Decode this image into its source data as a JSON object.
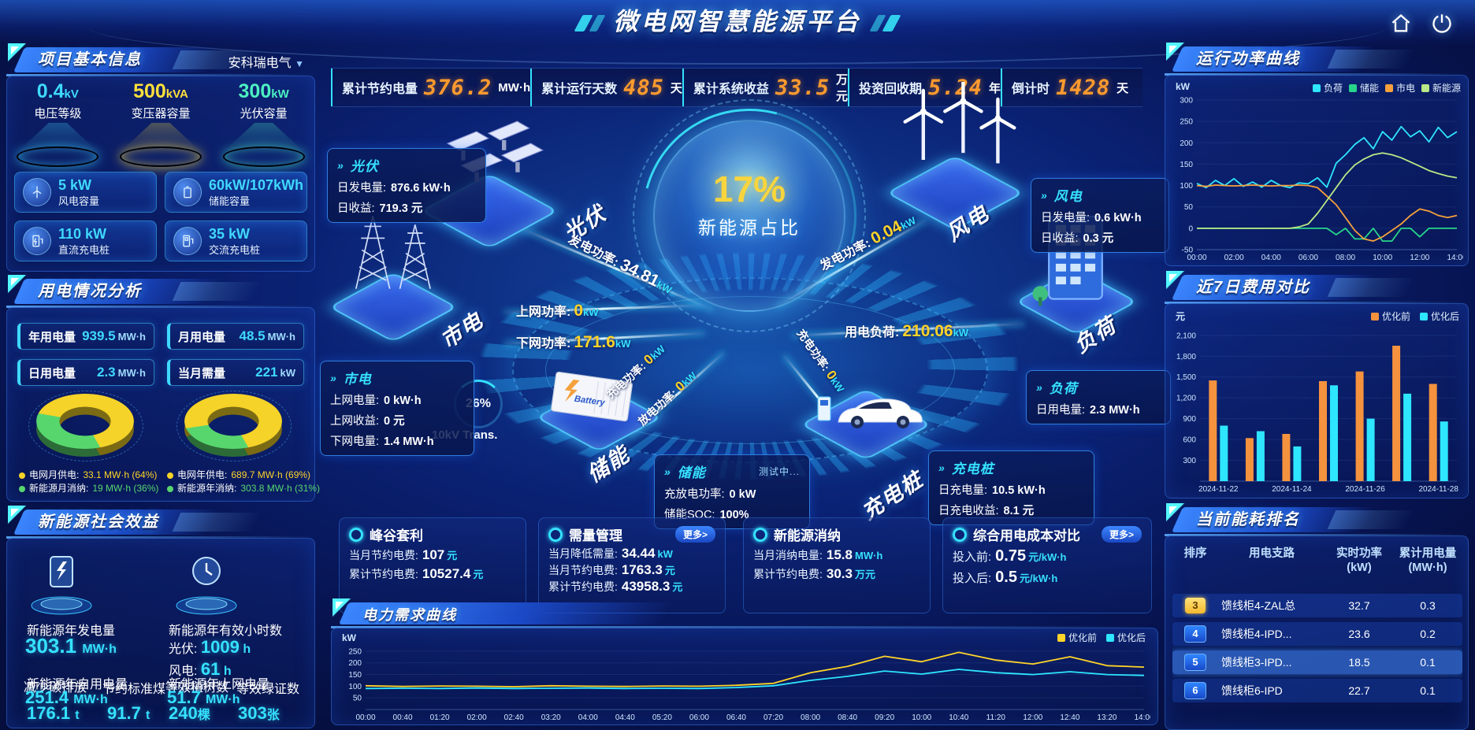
{
  "theme": {
    "accent_cyan": "#35e1ff",
    "accent_yellow": "#ffd428",
    "accent_orange": "#ff9a2e",
    "accent_green": "#57d66e",
    "panel_border": "#4086ff"
  },
  "header": {
    "title": "微电网智慧能源平台"
  },
  "kpis": [
    {
      "label": "累计节约电量",
      "value": "376.2",
      "unit": "MW·h"
    },
    {
      "label": "累计运行天数",
      "value": "485",
      "unit": "天"
    },
    {
      "label": "累计系统收益",
      "value": "33.5",
      "unit": "万元"
    },
    {
      "label": "投资回收期",
      "value": "5.24",
      "unit": "年"
    },
    {
      "label": "倒计时",
      "value": "1428",
      "unit": "天"
    }
  ],
  "project": {
    "title": "项目基本信息",
    "company": "安科瑞电气",
    "spotlights": [
      {
        "value": "0.4",
        "unit": "kV",
        "label": "电压等级",
        "color": "#3fd9ff"
      },
      {
        "value": "500",
        "unit": "kVA",
        "label": "变压器容量",
        "color": "#ffe03a"
      },
      {
        "value": "300",
        "unit": "kW",
        "label": "光伏容量",
        "color": "#4df0c2"
      }
    ],
    "cards": [
      {
        "value": "5 kW",
        "label": "风电容量",
        "icon": "wind-icon"
      },
      {
        "value": "60kW/107kWh",
        "label": "储能容量",
        "icon": "battery-icon"
      },
      {
        "value": "110 kW",
        "label": "直流充电桩",
        "icon": "dc-charger-icon"
      },
      {
        "value": "35 kW",
        "label": "交流充电桩",
        "icon": "ac-charger-icon"
      }
    ]
  },
  "usage": {
    "title": "用电情况分析",
    "chips": [
      {
        "label": "年用电量",
        "value": "939.5",
        "unit": "MW·h"
      },
      {
        "label": "月用电量",
        "value": "48.5",
        "unit": "MW·h"
      },
      {
        "label": "日用电量",
        "value": "2.3",
        "unit": "MW·h"
      },
      {
        "label": "当月需量",
        "value": "221",
        "unit": "kW"
      }
    ],
    "legend_month": [
      {
        "label": "电网月供电:",
        "value": "33.1 MW·h (64%)"
      },
      {
        "label": "新能源月消纳:",
        "value": "19 MW·h (36%)"
      }
    ],
    "legend_year": [
      {
        "label": "电网年供电:",
        "value": "689.7 MW·h (69%)"
      },
      {
        "label": "新能源年消纳:",
        "value": "303.8 MW·h (31%)"
      }
    ]
  },
  "benefit": {
    "title": "新能源社会效益",
    "gen_label": "新能源年发电量",
    "gen_value": "303.1",
    "gen_unit": "MW·h",
    "hours_label": "新能源年有效小时数",
    "pv_label": "光伏:",
    "pv_value": "1009",
    "pv_unit": "h",
    "wind_label": "风电:",
    "wind_value": "61",
    "wind_unit": "h",
    "self_label": "新能源年自用电量",
    "self_value": "251.4",
    "self_unit": "MW·h",
    "feed_label": "新能源年上网电量",
    "feed_value": "51.7",
    "feed_unit": "MW·h",
    "co2_label": "减少碳排放",
    "co2_value": "176.1",
    "co2_unit": "t",
    "coal_label": "节约标准煤",
    "coal_value": "91.7",
    "coal_unit": "t",
    "tree_label": "等效植树数",
    "tree_value": "240",
    "tree_unit": "棵",
    "cert_label": "等效绿证数",
    "cert_value": "303",
    "cert_unit": "张"
  },
  "center": {
    "orb_value": "17%",
    "orb_label": "新能源占比",
    "transformer_value": "26%",
    "transformer_label": "10kV Trans.",
    "battery_text": "Battery",
    "nodes": {
      "solar": "光伏",
      "wind": "风电",
      "grid": "市电",
      "load": "负荷",
      "storage": "储能",
      "charger": "充电桩"
    },
    "boxes": {
      "solar": {
        "title": "光伏",
        "lines": [
          {
            "label": "日发电量:",
            "value": "876.6 kW·h"
          },
          {
            "label": "日收益:",
            "value": "719.3 元"
          }
        ]
      },
      "grid": {
        "title": "市电",
        "lines": [
          {
            "label": "上网电量:",
            "value": "0 kW·h"
          },
          {
            "label": "上网收益:",
            "value": "0 元"
          },
          {
            "label": "下网电量:",
            "value": "1.4 MW·h"
          }
        ]
      },
      "wind": {
        "title": "风电",
        "lines": [
          {
            "label": "日发电量:",
            "value": "0.6 kW·h"
          },
          {
            "label": "日收益:",
            "value": "0.3 元"
          }
        ]
      },
      "load": {
        "title": "负荷",
        "lines": [
          {
            "label": "日用电量:",
            "value": "2.3 MW·h"
          }
        ]
      },
      "storage": {
        "title": "储能",
        "badge": "测试中...",
        "lines": [
          {
            "label": "充放电功率:",
            "value": "0 kW"
          },
          {
            "label": "储能SOC:",
            "value": "100%"
          }
        ]
      },
      "charger": {
        "title": "充电桩",
        "lines": [
          {
            "label": "日充电量:",
            "value": "10.5 kW·h"
          },
          {
            "label": "日充电收益:",
            "value": "8.1 元"
          }
        ]
      }
    },
    "flows": [
      {
        "label": "发电功率:",
        "value": "34.81",
        "unit": "kW"
      },
      {
        "label": "上网功率:",
        "value": "0",
        "unit": "kW"
      },
      {
        "label": "下网功率:",
        "value": "171.6",
        "unit": "kW"
      },
      {
        "label": "发电功率:",
        "value": "0.04",
        "unit": "kW"
      },
      {
        "label": "用电负荷:",
        "value": "210.06",
        "unit": "kW"
      },
      {
        "label": "充电功率:",
        "value": "0",
        "unit": "kW"
      },
      {
        "label": "放电功率:",
        "value": "0",
        "unit": "kW"
      },
      {
        "label": "充电功率:",
        "value": "0",
        "unit": "kW"
      }
    ]
  },
  "bottom_boxes": [
    {
      "title": "峰谷套利",
      "lines": [
        {
          "label": "当月节约电费:",
          "value": "107",
          "unit": "元"
        },
        {
          "label": "累计节约电费:",
          "value": "10527.4",
          "unit": "元"
        }
      ]
    },
    {
      "title": "需量管理",
      "more": "更多>",
      "lines": [
        {
          "label": "当月降低需量:",
          "value": "34.44",
          "unit": "kW"
        },
        {
          "label": "当月节约电费:",
          "value": "1763.3",
          "unit": "元"
        },
        {
          "label": "累计节约电费:",
          "value": "43958.3",
          "unit": "元"
        }
      ]
    },
    {
      "title": "新能源消纳",
      "lines": [
        {
          "label": "当月消纳电量:",
          "value": "15.8",
          "unit": "MW·h"
        },
        {
          "label": "累计节约电费:",
          "value": "30.3",
          "unit": "万元"
        }
      ]
    },
    {
      "title": "综合用电成本对比",
      "more": "更多>",
      "lines": [
        {
          "label": "投入前:",
          "value": "0.75",
          "unit": "元/kW·h"
        },
        {
          "label": "投入后:",
          "value": "0.5",
          "unit": "元/kW·h"
        }
      ]
    }
  ],
  "panels": {
    "power_curve": "运行功率曲线",
    "cost_compare": "近7日费用对比",
    "ranking": "当前能耗排名",
    "demand_curve": "电力需求曲线"
  },
  "ranking": {
    "headers": [
      "排序",
      "用电支路",
      "实时功率 (kW)",
      "累计用电量 (MW·h)"
    ],
    "rows": [
      {
        "rank": "3",
        "branch": "馈线柜4-ZAL总",
        "power": "32.7",
        "energy": "0.3"
      },
      {
        "rank": "4",
        "branch": "馈线柜4-IPD...",
        "power": "23.6",
        "energy": "0.2"
      },
      {
        "rank": "5",
        "branch": "馈线柜3-IPD...",
        "power": "18.5",
        "energy": "0.1"
      },
      {
        "rank": "6",
        "branch": "馈线柜6-IPD",
        "power": "22.7",
        "energy": "0.1"
      }
    ]
  },
  "chart_data": [
    {
      "id": "run_power",
      "type": "line",
      "title": "运行功率曲线",
      "ylabel": "kW",
      "ylim": [
        -50,
        300
      ],
      "yticks": [
        -50,
        0,
        50,
        100,
        150,
        200,
        250,
        300
      ],
      "x_every": 4,
      "legend_position": "top",
      "x": [
        "00:00",
        "00:30",
        "01:00",
        "01:30",
        "02:00",
        "02:30",
        "03:00",
        "03:30",
        "04:00",
        "04:30",
        "05:00",
        "05:30",
        "06:00",
        "06:30",
        "07:00",
        "07:30",
        "08:00",
        "08:30",
        "09:00",
        "09:30",
        "10:00",
        "10:30",
        "11:00",
        "11:30",
        "12:00",
        "12:30",
        "13:00",
        "13:30",
        "14:00"
      ],
      "series": [
        {
          "name": "负荷",
          "color": "#2ee6ff",
          "values": [
            105,
            95,
            112,
            100,
            116,
            98,
            108,
            96,
            112,
            100,
            95,
            106,
            104,
            118,
            96,
            152,
            172,
            196,
            212,
            186,
            226,
            206,
            238,
            214,
            228,
            202,
            236,
            212,
            226
          ]
        },
        {
          "name": "储能",
          "color": "#27d58b",
          "values": [
            0,
            0,
            0,
            0,
            0,
            0,
            0,
            0,
            0,
            0,
            0,
            0,
            0,
            0,
            0,
            -15,
            0,
            -25,
            -25,
            0,
            -30,
            -30,
            0,
            0,
            -20,
            0,
            0,
            0,
            0
          ]
        },
        {
          "name": "市电",
          "color": "#f5a03c",
          "values": [
            100,
            98,
            101,
            100,
            99,
            100,
            101,
            100,
            99,
            100,
            100,
            101,
            100,
            95,
            75,
            55,
            25,
            -5,
            -25,
            -30,
            -20,
            -5,
            10,
            30,
            45,
            40,
            30,
            25,
            30
          ]
        },
        {
          "name": "新能源",
          "color": "#b8e986",
          "values": [
            0,
            0,
            0,
            0,
            0,
            0,
            0,
            0,
            0,
            0,
            0,
            3,
            10,
            35,
            65,
            95,
            125,
            148,
            162,
            172,
            176,
            172,
            165,
            155,
            145,
            135,
            128,
            122,
            118
          ]
        }
      ]
    },
    {
      "id": "cost_7day",
      "type": "bar",
      "title": "近7日费用对比",
      "ylabel": "元",
      "ylim": [
        0,
        2200
      ],
      "yticks": [
        300,
        600,
        900,
        1200,
        1500,
        1800,
        2100
      ],
      "ytick_labels": [
        "300",
        "600",
        "900",
        "1,200",
        "1,500",
        "1,800",
        "2,100"
      ],
      "x_every": 2,
      "legend_position": "top-right",
      "categories": [
        "2024-11-22",
        "2024-11-23",
        "2024-11-24",
        "2024-11-25",
        "2024-11-26",
        "2024-11-27",
        "2024-11-28"
      ],
      "series": [
        {
          "name": "优化前",
          "color": "#f5923e",
          "values": [
            1450,
            620,
            680,
            1440,
            1580,
            1950,
            1400
          ]
        },
        {
          "name": "优化后",
          "color": "#2ee6ff",
          "values": [
            800,
            720,
            500,
            1380,
            900,
            1260,
            860
          ]
        }
      ]
    },
    {
      "id": "demand",
      "type": "line",
      "title": "电力需求曲线",
      "ylabel": "kW",
      "ylim": [
        0,
        270
      ],
      "yticks": [
        50,
        100,
        150,
        200,
        250
      ],
      "x_every": 1,
      "legend_position": "top-right",
      "x": [
        "00:00",
        "00:40",
        "01:20",
        "02:00",
        "02:40",
        "03:20",
        "04:00",
        "04:40",
        "05:20",
        "06:00",
        "06:40",
        "07:20",
        "08:00",
        "08:40",
        "09:20",
        "10:00",
        "10:40",
        "11:20",
        "12:00",
        "12:40",
        "13:20",
        "14:00"
      ],
      "series": [
        {
          "name": "优化前",
          "color": "#ffd428",
          "values": [
            102,
            99,
            101,
            100,
            98,
            102,
            100,
            99,
            101,
            100,
            104,
            112,
            158,
            185,
            228,
            205,
            245,
            212,
            195,
            226,
            188,
            182
          ]
        },
        {
          "name": "优化后",
          "color": "#2ee6ff",
          "values": [
            90,
            91,
            90,
            92,
            90,
            91,
            92,
            90,
            91,
            90,
            94,
            102,
            125,
            142,
            165,
            152,
            172,
            158,
            150,
            162,
            150,
            146
          ]
        }
      ]
    },
    {
      "id": "donut_month",
      "type": "pie",
      "slices": [
        {
          "label": "电网月供电",
          "value": 64,
          "color": "#f5d328",
          "text": "33.1 MW·h (64%)"
        },
        {
          "label": "新能源月消纳",
          "value": 36,
          "color": "#57d66e",
          "text": "19 MW·h (36%)"
        }
      ]
    },
    {
      "id": "donut_year",
      "type": "pie",
      "slices": [
        {
          "label": "电网年供电",
          "value": 69,
          "color": "#f5d328",
          "text": "689.7 MW·h (69%)"
        },
        {
          "label": "新能源年消纳",
          "value": 31,
          "color": "#57d66e",
          "text": "303.8 MW·h (31%)"
        }
      ]
    }
  ]
}
